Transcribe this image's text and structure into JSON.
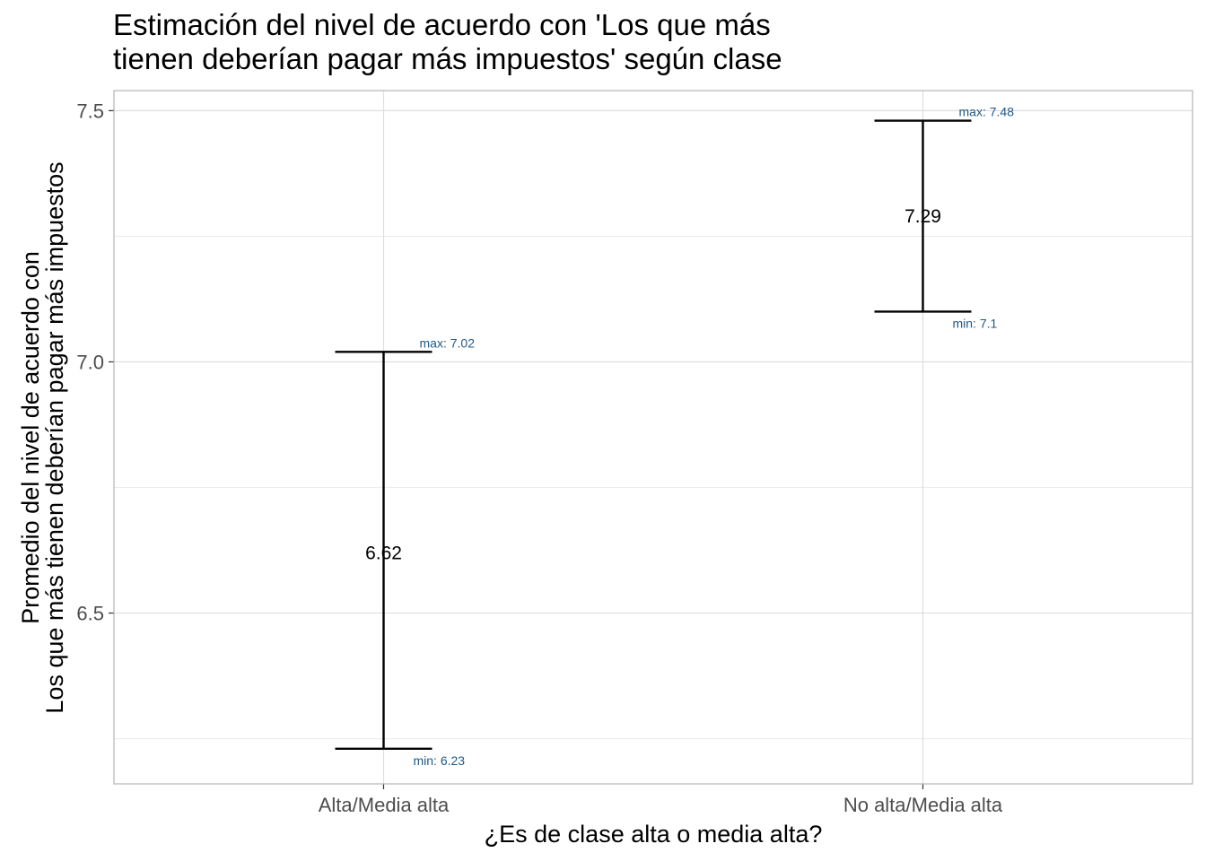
{
  "chart_data": {
    "type": "errorbar",
    "title_lines": [
      "Estimación del nivel de acuerdo con 'Los que más",
      "tienen deberían pagar más impuestos' según clase"
    ],
    "xlabel": "¿Es de clase alta o media alta?",
    "ylabel_lines": [
      "Promedio del nivel de acuerdo con",
      "Los que más tienen deberían pagar más impuestos"
    ],
    "categories": [
      "Alta/Media alta",
      "No alta/Media alta"
    ],
    "mean": [
      6.62,
      7.29
    ],
    "lower": [
      6.23,
      7.1
    ],
    "upper": [
      7.02,
      7.48
    ],
    "mean_labels": [
      "6.62",
      "7.29"
    ],
    "lower_labels": [
      "min: 6.23",
      "min: 7.1"
    ],
    "upper_labels": [
      "max: 7.02",
      "max: 7.48"
    ],
    "ylim": [
      6.16,
      7.54
    ],
    "y_major_ticks": [
      6.5,
      7.0,
      7.5
    ],
    "y_tick_labels": [
      "6.5",
      "7.0",
      "7.5"
    ],
    "y_minor_ticks": [
      6.25,
      6.75,
      7.25
    ],
    "grid": true,
    "colors": {
      "errorbar": "#000000",
      "bound_label": "#1f5a85",
      "grid": "#dedede",
      "panel_border": "#b3b3b3"
    }
  }
}
